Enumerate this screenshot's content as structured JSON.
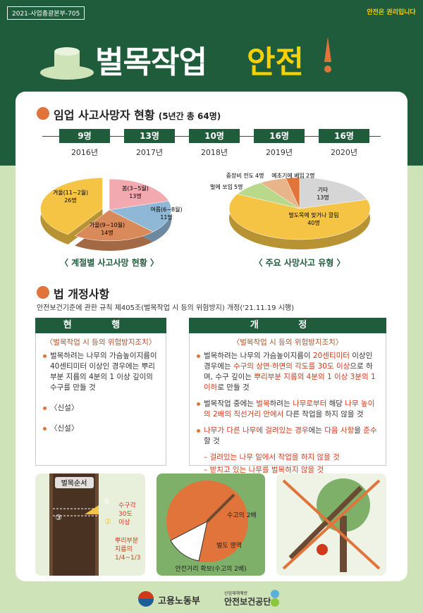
{
  "header": {
    "code": "2021-사업총괄본부-705",
    "brand": "안전은 권리입니다",
    "title": "벌목작업",
    "title_highlight": "안전"
  },
  "fatalities": {
    "heading": "임업 사고사망자 현황",
    "heading_note": "(5년간 총 64명)",
    "years": [
      {
        "count": "9명",
        "year": "2016년"
      },
      {
        "count": "13명",
        "year": "2017년"
      },
      {
        "count": "10명",
        "year": "2018년"
      },
      {
        "count": "16명",
        "year": "2019년"
      },
      {
        "count": "16명",
        "year": "2020년"
      }
    ]
  },
  "charts": [
    {
      "type": "pie",
      "caption": "〈 계절별 사고사망 현황 〉",
      "slices": [
        {
          "label": "봄(3~5월)",
          "value": 13,
          "value_label": "13명",
          "color": "#f3a9b0"
        },
        {
          "label": "여름(6~8월)",
          "value": 11,
          "value_label": "11명",
          "color": "#8fb8d6"
        },
        {
          "label": "가을(9~10월)",
          "value": 14,
          "value_label": "14명",
          "color": "#d98a5a"
        },
        {
          "label": "겨울(11~2월)",
          "value": 26,
          "value_label": "26명",
          "color": "#f5c445"
        }
      ]
    },
    {
      "type": "pie",
      "caption": "〈 주요 사망사고 유형 〉",
      "slices": [
        {
          "label": "기타",
          "value": 13,
          "value_label": "13명",
          "color": "#d6d6d6"
        },
        {
          "label": "벌도목에 맞거나 깔림",
          "value": 40,
          "value_label": "40명",
          "color": "#f5c445"
        },
        {
          "label": "벌에 쏘임",
          "value": 5,
          "value_label": "5명",
          "color": "#b9d98a"
        },
        {
          "label": "중장비 전도",
          "value": 4,
          "value_label": "4명",
          "color": "#e8b48a"
        },
        {
          "label": "예초기에 베임",
          "value": 2,
          "value_label": "2명",
          "color": "#e0743a"
        }
      ]
    }
  ],
  "law": {
    "heading": "법 개정사항",
    "subtitle": "안전보건기준에 관한 규칙 제405조(벌목작업 시 등의 위험방지) 개정('21.11.19 시행)",
    "current": {
      "header": "현 행",
      "title": "〈벌목작업 시 등의 위험방지조치〉",
      "items": [
        "벌목하려는 나무의 가슴높이지름이 40센티미터 이상인 경우에는 뿌리부분 지름의 4분의 1 이상 깊이의 수구를 만들 것",
        "〈신설〉",
        "〈신설〉"
      ]
    },
    "revised": {
      "header": "개 정",
      "title": "〈벌목작업 시 등의 위험방지조치〉",
      "items": [
        [
          "벌목하려는 나무의 가슴높이지름이 ",
          "20센티미터",
          " 이상인 경우에는 ",
          "수구의 상면·하면의 각도를 30도 이상",
          "으로 하며, 수구 깊이는 ",
          "뿌리부분 지름의 4분의 1 이상 3분의 1이하",
          "로 만들 것"
        ],
        [
          "벌목작업 중에는 ",
          "벌목",
          "하려는 ",
          "나무로부터",
          " 해당 ",
          "나무 높이의 2배의 직선거리 안에서",
          " 다른 작업을 하지 않을 것"
        ],
        [
          "",
          "나무가 다른 나무에 걸려있는 경우",
          "에는 ",
          "다음 사항",
          "을 ",
          "준수",
          "할 것"
        ]
      ],
      "subitems": [
        "걸려있는 나무 밑에서 작업을 하지 않을 것",
        "받치고 있는 나무를 벌목하지 않을 것"
      ]
    }
  },
  "illustrations": {
    "order": {
      "title": "벌목순서",
      "steps": [
        "①",
        "②",
        "③"
      ],
      "angle": [
        "수구각",
        "30도",
        "이상"
      ],
      "depth": [
        "뿌리부분",
        "지름의",
        "1/4~1/3"
      ]
    },
    "distance": {
      "height_label": "수고의 2배",
      "zone_label": "벌도 영역",
      "caption": "안전거리 확보(수고의 2배)"
    }
  },
  "footer": {
    "ministry": "고용노동부",
    "agency_note": "산업재해예방",
    "agency": "안전보건공단"
  }
}
